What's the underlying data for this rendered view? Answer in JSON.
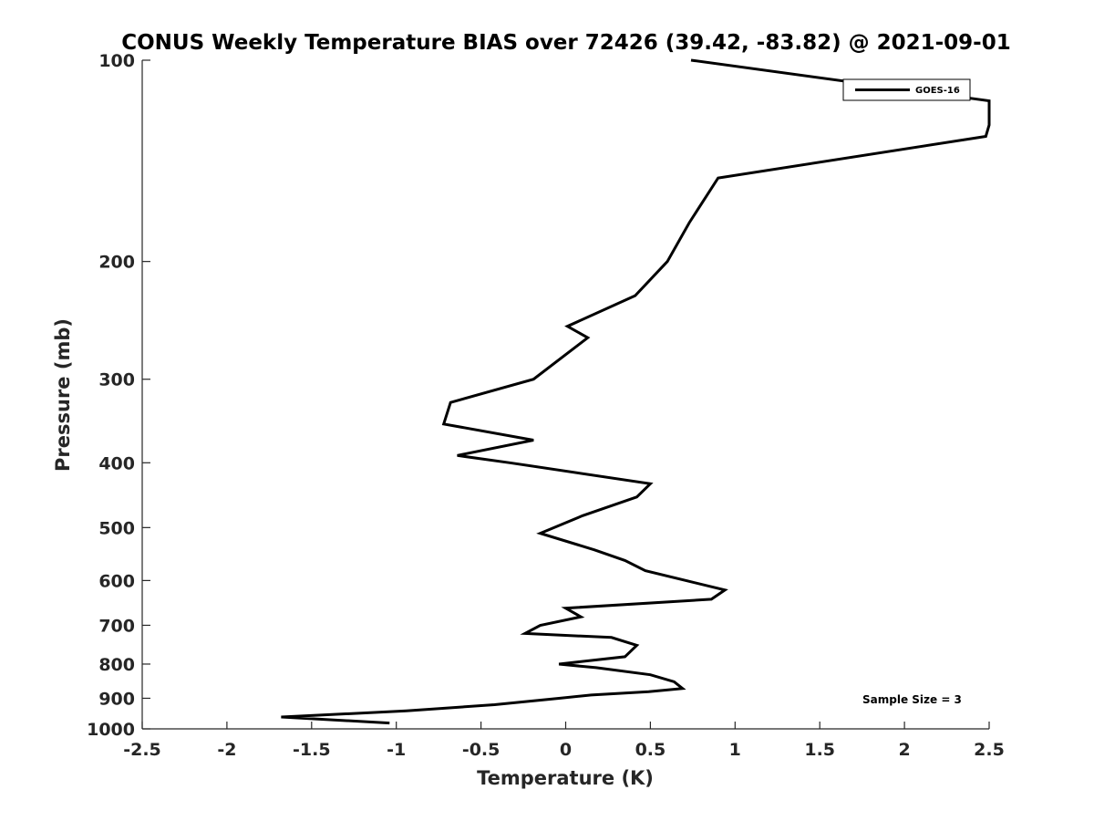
{
  "chart_data": {
    "type": "line",
    "title": "CONUS Weekly Temperature BIAS over 72426 (39.42, -83.82) @ 2021-09-01",
    "xlabel": "Temperature (K)",
    "ylabel": "Pressure (mb)",
    "xlim": [
      -2.5,
      2.5
    ],
    "ylim": [
      100,
      1000
    ],
    "y_scale": "log",
    "y_reversed": true,
    "x_ticks": [
      -2.5,
      -2,
      -1.5,
      -1,
      -0.5,
      0,
      0.5,
      1,
      1.5,
      2,
      2.5
    ],
    "x_tick_labels": [
      "-2.5",
      "-2",
      "-1.5",
      "-1",
      "-0.5",
      "0",
      "0.5",
      "1",
      "1.5",
      "2",
      "2.5"
    ],
    "y_ticks": [
      100,
      200,
      300,
      400,
      500,
      600,
      700,
      800,
      900,
      1000
    ],
    "y_tick_labels": [
      "100",
      "200",
      "300",
      "400",
      "500",
      "600",
      "700",
      "800",
      "900",
      "1000"
    ],
    "grid": false,
    "legend_position": "top-right",
    "series": [
      {
        "name": "GOES-16",
        "color": "#000000",
        "x": [
          0.74,
          2.5,
          2.5,
          2.48,
          0.9,
          0.73,
          0.6,
          0.41,
          0.01,
          0.13,
          -0.19,
          -0.68,
          -0.72,
          -0.19,
          -0.64,
          -0.33,
          0.5,
          0.42,
          0.1,
          -0.15,
          0.17,
          0.35,
          0.47,
          0.94,
          0.86,
          0.0,
          0.09,
          -0.15,
          -0.24,
          0.27,
          0.42,
          0.35,
          -0.04,
          0.18,
          0.5,
          0.64,
          0.69,
          0.49,
          0.15,
          -0.04,
          -0.42,
          -0.94,
          -1.68,
          -1.04
        ],
        "y": [
          100,
          115,
          125,
          130,
          150,
          175,
          200,
          225,
          250,
          260,
          300,
          325,
          350,
          370,
          390,
          400,
          430,
          450,
          480,
          510,
          540,
          560,
          580,
          620,
          640,
          660,
          680,
          700,
          720,
          730,
          750,
          780,
          800,
          810,
          830,
          850,
          870,
          880,
          890,
          900,
          920,
          940,
          960,
          980
        ]
      }
    ],
    "annotations": [
      "Sample Size = 3"
    ]
  }
}
